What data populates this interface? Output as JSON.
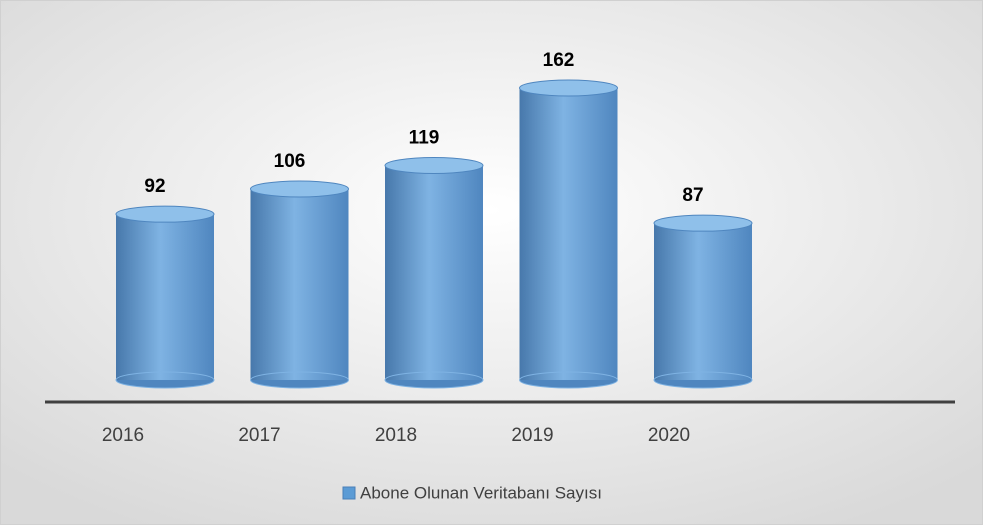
{
  "chart_data": {
    "type": "cylinder",
    "categories": [
      "2016",
      "2017",
      "2018",
      "2019",
      "2020"
    ],
    "series": [
      {
        "name": "Abone Olunan Veritabanı Sayısı",
        "color": "#5b9bd5",
        "values": [
          92,
          106,
          119,
          162,
          87
        ]
      }
    ],
    "legend": "bottom"
  }
}
